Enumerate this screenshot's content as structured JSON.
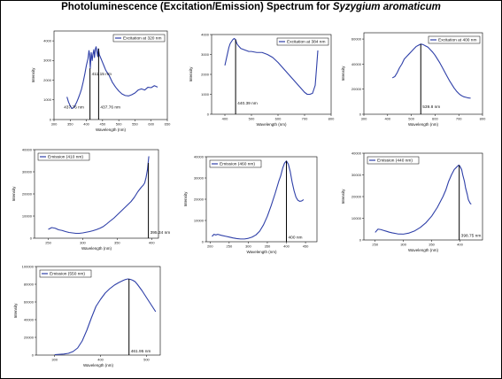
{
  "figure": {
    "title_prefix": "Photoluminescence (Excitation/Emission) Spectrum for ",
    "title_species": "Syzygium aromaticum",
    "series_color": "#2e3fa8"
  },
  "chart_data": [
    {
      "id": "exc320",
      "type": "line",
      "title": "",
      "xlabel": "Wavelength (nm)",
      "ylabel": "Intensity",
      "xlim": [
        300,
        650
      ],
      "ylim": [
        0,
        4500
      ],
      "xticks": [
        300,
        350,
        400,
        450,
        500,
        550,
        600,
        650
      ],
      "yticks": [
        0,
        1000,
        2000,
        3000,
        4000
      ],
      "legend": "Excitation at 320 nm",
      "legend_position": "top-right",
      "series": [
        {
          "x": [
            340,
            345,
            350,
            355,
            360,
            365,
            370,
            375,
            380,
            385,
            390,
            395,
            400,
            405,
            408,
            410,
            412,
            415,
            418,
            420,
            423,
            425,
            428,
            430,
            432,
            435,
            437,
            440,
            445,
            450,
            455,
            460,
            470,
            480,
            490,
            500,
            510,
            520,
            530,
            540,
            550,
            560,
            570,
            580,
            590,
            600,
            610,
            620
          ],
          "y": [
            1150,
            880,
            700,
            560,
            600,
            720,
            880,
            1080,
            1300,
            1550,
            1900,
            2300,
            2750,
            3100,
            3500,
            3300,
            2600,
            3400,
            3000,
            3300,
            3550,
            3150,
            3600,
            3700,
            3500,
            3200,
            3600,
            3300,
            3100,
            2900,
            2700,
            2500,
            2250,
            1900,
            1650,
            1450,
            1300,
            1220,
            1200,
            1260,
            1350,
            1500,
            1560,
            1500,
            1640,
            1620,
            1720,
            1650
          ]
        }
      ],
      "markers": [
        {
          "x": 411.15,
          "label": "411.15 nm",
          "label_y": 2250
        },
        {
          "x": 437.76,
          "label": "437.76 nm",
          "label_y": 560
        }
      ],
      "extra_labels": [
        {
          "x": 325,
          "y": 560,
          "text": "437.76 nm"
        }
      ]
    },
    {
      "id": "exc384",
      "type": "line",
      "title": "",
      "xlabel": "Wavelength (nm)",
      "ylabel": "Intensity",
      "xlim": [
        350,
        800
      ],
      "ylim": [
        0,
        4000
      ],
      "xticks": [
        400,
        500,
        600,
        700,
        800
      ],
      "yticks": [
        0,
        1000,
        2000,
        3000,
        4000
      ],
      "legend": "Excitation at 384 nm",
      "legend_position": "top-right",
      "series": [
        {
          "x": [
            400,
            405,
            410,
            415,
            420,
            425,
            430,
            435,
            440,
            445,
            450,
            460,
            470,
            480,
            490,
            500,
            520,
            540,
            560,
            580,
            600,
            620,
            640,
            660,
            680,
            690,
            700,
            710,
            720,
            730,
            740,
            745,
            750
          ],
          "y": [
            2450,
            2750,
            3050,
            3350,
            3550,
            3650,
            3750,
            3800,
            3750,
            3550,
            3450,
            3300,
            3250,
            3200,
            3150,
            3150,
            3100,
            3100,
            3000,
            2850,
            2600,
            2300,
            2000,
            1700,
            1400,
            1250,
            1100,
            1000,
            1000,
            1050,
            1450,
            2300,
            3200
          ]
        }
      ],
      "markers": [
        {
          "x": 440.39,
          "label": "440.39 nm",
          "label_y": 480
        }
      ],
      "extra_labels": []
    },
    {
      "id": "exc400",
      "type": "line",
      "title": "",
      "xlabel": "Wavelength (nm)",
      "ylabel": "Intensity",
      "xlim": [
        300,
        800
      ],
      "ylim": [
        0,
        65000
      ],
      "xticks": [
        300,
        400,
        500,
        600,
        700,
        800
      ],
      "yticks": [
        0,
        20000,
        40000,
        60000
      ],
      "legend": "Excitation at 400 nm",
      "legend_position": "top-right",
      "series": [
        {
          "x": [
            420,
            430,
            440,
            450,
            460,
            470,
            480,
            490,
            500,
            510,
            520,
            530,
            540,
            550,
            560,
            570,
            580,
            590,
            600,
            610,
            620,
            630,
            640,
            650,
            660,
            670,
            680,
            690,
            700,
            710,
            720,
            730,
            740,
            750
          ],
          "y": [
            29000,
            30000,
            33000,
            37000,
            40000,
            44000,
            46000,
            48000,
            50000,
            52000,
            54000,
            55000,
            56000,
            55500,
            54500,
            53500,
            51500,
            49500,
            47000,
            44000,
            41000,
            37500,
            34000,
            30500,
            27000,
            24000,
            21000,
            18500,
            16500,
            15000,
            14000,
            13500,
            13000,
            12800
          ]
        }
      ],
      "markers": [
        {
          "x": 539.8,
          "label": "539.8 nm",
          "label_y": 5000
        }
      ],
      "extra_labels": []
    },
    {
      "id": "em410",
      "type": "line",
      "title": "",
      "xlabel": "Wavelength (nm)",
      "ylabel": "Intensity",
      "xlim": [
        230,
        410
      ],
      "ylim": [
        0,
        40000
      ],
      "xticks": [
        250,
        300,
        350,
        400
      ],
      "yticks": [
        0,
        10000,
        20000,
        30000,
        40000
      ],
      "legend": "Emission (410 nm)",
      "legend_position": "top-left",
      "series": [
        {
          "x": [
            250,
            255,
            260,
            265,
            270,
            275,
            280,
            285,
            290,
            295,
            300,
            305,
            310,
            315,
            320,
            325,
            330,
            335,
            340,
            345,
            350,
            355,
            360,
            365,
            370,
            375,
            380,
            385,
            388,
            390,
            392,
            394,
            395,
            396
          ],
          "y": [
            4000,
            4800,
            4500,
            3800,
            3500,
            3000,
            2600,
            2400,
            2200,
            2200,
            2400,
            2700,
            3000,
            3400,
            3900,
            4500,
            5300,
            6500,
            7800,
            9000,
            10500,
            12000,
            13500,
            15000,
            16500,
            18500,
            21000,
            23000,
            24000,
            25000,
            27500,
            31000,
            34000,
            37000
          ]
        }
      ],
      "markers": [
        {
          "x": 395.34,
          "label": "395.34 nm",
          "label_y": 2000
        }
      ],
      "extra_labels": []
    },
    {
      "id": "em460",
      "type": "line",
      "title": "",
      "xlabel": "Wavelength (nm)",
      "ylabel": "Intensity",
      "xlim": [
        190,
        480
      ],
      "ylim": [
        0,
        40000
      ],
      "xticks": [
        200,
        250,
        300,
        350,
        400,
        450
      ],
      "yticks": [
        0,
        10000,
        20000,
        30000,
        40000
      ],
      "legend": "Emission (460 nm)",
      "legend_position": "top-left",
      "series": [
        {
          "x": [
            205,
            210,
            215,
            220,
            230,
            240,
            250,
            260,
            270,
            280,
            290,
            300,
            310,
            320,
            330,
            340,
            350,
            360,
            370,
            380,
            385,
            390,
            395,
            400,
            405,
            410,
            415,
            420,
            425,
            430,
            435,
            440,
            445
          ],
          "y": [
            2500,
            3500,
            3200,
            3500,
            3000,
            2600,
            2200,
            1800,
            1500,
            1300,
            1300,
            1600,
            2200,
            3200,
            5000,
            8000,
            12000,
            17000,
            22500,
            28500,
            31000,
            34500,
            37000,
            38000,
            36500,
            33000,
            28000,
            24000,
            21000,
            19500,
            19000,
            19200,
            19800
          ]
        }
      ],
      "markers": [
        {
          "x": 400,
          "label": "400 nm",
          "label_y": 1500
        }
      ],
      "extra_labels": []
    },
    {
      "id": "em440",
      "type": "line",
      "title": "",
      "xlabel": "Wavelength (nm)",
      "ylabel": "Intensity",
      "xlim": [
        230,
        440
      ],
      "ylim": [
        0,
        40000
      ],
      "xticks": [
        250,
        300,
        350,
        400
      ],
      "yticks": [
        0,
        10000,
        20000,
        30000,
        40000
      ],
      "legend": "Emission (440 nm)",
      "legend_position": "top-left",
      "series": [
        {
          "x": [
            250,
            255,
            260,
            265,
            270,
            275,
            280,
            290,
            300,
            310,
            320,
            330,
            340,
            350,
            360,
            370,
            375,
            380,
            385,
            390,
            395,
            398,
            400,
            403,
            405,
            408,
            410,
            413,
            415,
            418,
            420
          ],
          "y": [
            3500,
            5000,
            4800,
            4400,
            4000,
            3600,
            3300,
            2800,
            2700,
            3200,
            4200,
            5800,
            8000,
            11000,
            15000,
            20000,
            23000,
            27000,
            30000,
            32500,
            33800,
            34500,
            34000,
            32500,
            30000,
            27000,
            24000,
            21000,
            18500,
            17000,
            16500
          ]
        }
      ],
      "markers": [
        {
          "x": 398.75,
          "label": "398.75 nm",
          "label_y": 1500
        }
      ],
      "extra_labels": []
    },
    {
      "id": "em550",
      "type": "line",
      "title": "",
      "xlabel": "Wavelength (nm)",
      "ylabel": "Intensity",
      "xlim": [
        260,
        530
      ],
      "ylim": [
        0,
        100000
      ],
      "xticks": [
        300,
        400,
        500
      ],
      "yticks": [
        0,
        20000,
        40000,
        60000,
        80000,
        100000
      ],
      "legend": "Emission (550 nm)",
      "legend_position": "top-left",
      "series": [
        {
          "x": [
            300,
            310,
            320,
            330,
            340,
            350,
            360,
            370,
            380,
            390,
            400,
            410,
            420,
            430,
            440,
            450,
            455,
            460,
            465,
            470,
            475,
            480,
            490,
            500,
            510,
            520
          ],
          "y": [
            500,
            800,
            1200,
            2000,
            4000,
            8000,
            16000,
            28000,
            42000,
            55000,
            63000,
            70000,
            75000,
            79000,
            82000,
            84500,
            85500,
            86000,
            85500,
            84500,
            83000,
            80000,
            73000,
            65000,
            57000,
            49000
          ]
        }
      ],
      "markers": [
        {
          "x": 461.95,
          "label": "461.95 nm",
          "label_y": 3000
        }
      ],
      "extra_labels": []
    }
  ]
}
